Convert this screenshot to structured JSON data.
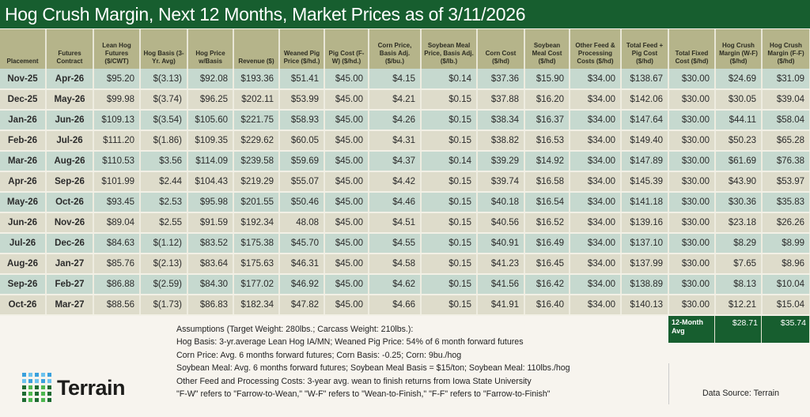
{
  "title": "Hog Crush Margin, Next 12 Months, Market Prices as of 3/11/2026",
  "colors": {
    "title_bg": "#175e2f",
    "header_bg": "#b5b48a",
    "row_teal": "#c6d9cf",
    "row_beige": "#dedccb",
    "logo_blue": "#3aa0dc",
    "logo_green": "#2e8b3e"
  },
  "table": {
    "headers": [
      "Placement",
      "Futures Contract",
      "Lean Hog Futures ($/CWT)",
      "Hog Basis (3-Yr. Avg)",
      "Hog Price w/Basis",
      "Revenue ($)",
      "Weaned Pig Price ($/hd.)",
      "Pig Cost (F-W) ($/hd.)",
      "Corn Price, Basis Adj. ($/bu.)",
      "Soybean Meal Price, Basis Adj. ($/lb.)",
      "Corn Cost ($/hd)",
      "Soybean Meal Cost ($/hd)",
      "Other Feed & Processing Costs ($/hd)",
      "Total Feed + Pig Cost ($/hd)",
      "Total Fixed Cost ($/hd)",
      "Hog Crush Margin (W-F) ($/hd)",
      "Hog Crush Margin (F-F) ($/hd)"
    ],
    "rows": [
      [
        "Nov-25",
        "Apr-26",
        "$95.20",
        "$(3.13)",
        "$92.08",
        "$193.36",
        "$51.41",
        "$45.00",
        "$4.15",
        "$0.14",
        "$37.36",
        "$15.90",
        "$34.00",
        "$138.67",
        "$30.00",
        "$24.69",
        "$31.09"
      ],
      [
        "Dec-25",
        "May-26",
        "$99.98",
        "$(3.74)",
        "$96.25",
        "$202.11",
        "$53.99",
        "$45.00",
        "$4.21",
        "$0.15",
        "$37.88",
        "$16.20",
        "$34.00",
        "$142.06",
        "$30.00",
        "$30.05",
        "$39.04"
      ],
      [
        "Jan-26",
        "Jun-26",
        "$109.13",
        "$(3.54)",
        "$105.60",
        "$221.75",
        "$58.93",
        "$45.00",
        "$4.26",
        "$0.15",
        "$38.34",
        "$16.37",
        "$34.00",
        "$147.64",
        "$30.00",
        "$44.11",
        "$58.04"
      ],
      [
        "Feb-26",
        "Jul-26",
        "$111.20",
        "$(1.86)",
        "$109.35",
        "$229.62",
        "$60.05",
        "$45.00",
        "$4.31",
        "$0.15",
        "$38.82",
        "$16.53",
        "$34.00",
        "$149.40",
        "$30.00",
        "$50.23",
        "$65.28"
      ],
      [
        "Mar-26",
        "Aug-26",
        "$110.53",
        "$3.56",
        "$114.09",
        "$239.58",
        "$59.69",
        "$45.00",
        "$4.37",
        "$0.14",
        "$39.29",
        "$14.92",
        "$34.00",
        "$147.89",
        "$30.00",
        "$61.69",
        "$76.38"
      ],
      [
        "Apr-26",
        "Sep-26",
        "$101.99",
        "$2.44",
        "$104.43",
        "$219.29",
        "$55.07",
        "$45.00",
        "$4.42",
        "$0.15",
        "$39.74",
        "$16.58",
        "$34.00",
        "$145.39",
        "$30.00",
        "$43.90",
        "$53.97"
      ],
      [
        "May-26",
        "Oct-26",
        "$93.45",
        "$2.53",
        "$95.98",
        "$201.55",
        "$50.46",
        "$45.00",
        "$4.46",
        "$0.15",
        "$40.18",
        "$16.54",
        "$34.00",
        "$141.18",
        "$30.00",
        "$30.36",
        "$35.83"
      ],
      [
        "Jun-26",
        "Nov-26",
        "$89.04",
        "$2.55",
        "$91.59",
        "$192.34",
        "48.08",
        "$45.00",
        "$4.51",
        "$0.15",
        "$40.56",
        "$16.52",
        "$34.00",
        "$139.16",
        "$30.00",
        "$23.18",
        "$26.26"
      ],
      [
        "Jul-26",
        "Dec-26",
        "$84.63",
        "$(1.12)",
        "$83.52",
        "$175.38",
        "$45.70",
        "$45.00",
        "$4.55",
        "$0.15",
        "$40.91",
        "$16.49",
        "$34.00",
        "$137.10",
        "$30.00",
        "$8.29",
        "$8.99"
      ],
      [
        "Aug-26",
        "Jan-27",
        "$85.76",
        "$(2.13)",
        "$83.64",
        "$175.63",
        "$46.31",
        "$45.00",
        "$4.58",
        "$0.15",
        "$41.23",
        "$16.45",
        "$34.00",
        "$137.99",
        "$30.00",
        "$7.65",
        "$8.96"
      ],
      [
        "Sep-26",
        "Feb-27",
        "$86.88",
        "$(2.59)",
        "$84.30",
        "$177.02",
        "$46.92",
        "$45.00",
        "$4.62",
        "$0.15",
        "$41.56",
        "$16.42",
        "$34.00",
        "$138.89",
        "$30.00",
        "$8.13",
        "$10.04"
      ],
      [
        "Oct-26",
        "Mar-27",
        "$88.56",
        "$(1.73)",
        "$86.83",
        "$182.34",
        "$47.82",
        "$45.00",
        "$4.66",
        "$0.15",
        "$41.91",
        "$16.40",
        "$34.00",
        "$140.13",
        "$30.00",
        "$12.21",
        "$15.04"
      ]
    ]
  },
  "average": {
    "label": "12-Month Avg",
    "wf": "$28.71",
    "ff": "$35.74"
  },
  "notes": [
    "Assumptions (Target Weight: 280lbs.; Carcass Weight: 210lbs.):",
    "Hog Basis: 3-yr.average Lean Hog IA/MN; Weaned Pig Price: 54% of 6 month forward futures",
    "Corn Price: Avg. 6 months forward futures; Corn Basis: -0.25; Corn: 9bu./hog",
    "Soybean Meal: Avg. 6 months forward futures; Soybean Meal Basis = $15/ton; Soybean Meal: 110lbs./hog",
    "Other Feed and Processing Costs: 3-year avg. wean to finish returns from Iowa State University",
    "\"F-W\" refers to \"Farrow-to-Wean,\" \"W-F\" refers to \"Wean-to-Finish,\" \"F-F\" refers to \"Farrow-to-Finish\""
  ],
  "source": "Data Source: Terrain",
  "logo": {
    "text": "Terrain"
  }
}
